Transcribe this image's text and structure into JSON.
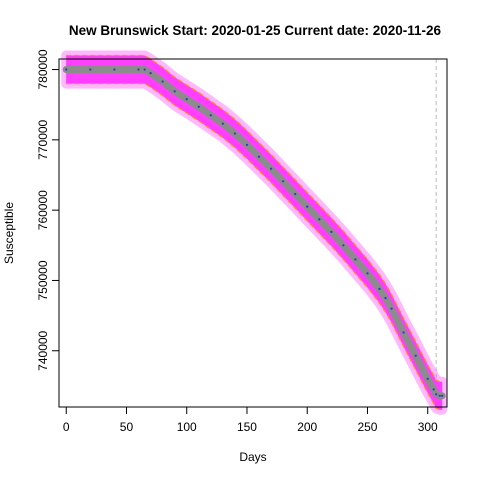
{
  "chart_data": {
    "type": "line",
    "title": "New Brunswick Start:  2020-01-25   Current date:  2020-11-26",
    "xlabel": "Days",
    "ylabel": "Susceptible",
    "xlim": [
      -6,
      316
    ],
    "ylim": [
      732000,
      781500
    ],
    "x_ticks": [
      0,
      50,
      100,
      150,
      200,
      250,
      300
    ],
    "y_ticks": [
      740000,
      750000,
      760000,
      770000,
      780000
    ],
    "current_day": 307,
    "band_halfwidth": 2000,
    "series": [
      {
        "x": [
          0,
          20,
          40,
          60,
          65,
          70,
          80,
          90,
          100,
          110,
          120,
          130,
          140,
          150,
          160,
          170,
          180,
          190,
          200,
          210,
          220,
          230,
          240,
          250,
          260,
          265,
          270,
          280,
          290,
          300,
          305,
          307,
          310,
          312
        ],
        "y": [
          780000,
          780000,
          780000,
          780000,
          780000,
          779500,
          778300,
          776900,
          775800,
          774700,
          773500,
          772300,
          770900,
          769300,
          767600,
          765900,
          764100,
          762300,
          760500,
          758700,
          756900,
          755000,
          753000,
          751000,
          748800,
          747500,
          746000,
          742600,
          739300,
          736000,
          734500,
          733800,
          733600,
          733600
        ],
        "color": "#3333cc"
      }
    ],
    "colors": {
      "band": "#ff33ff",
      "mean_line": "#8c8c8c",
      "bound_line": "#ff8c1a",
      "current_date_line": "#bbbbbb"
    }
  }
}
